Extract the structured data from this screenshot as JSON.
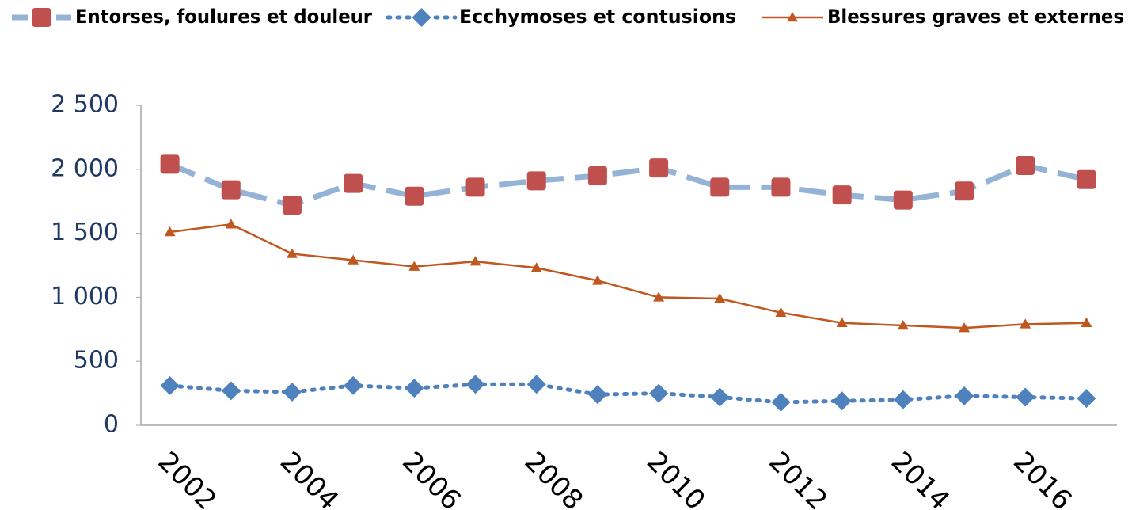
{
  "chart_data": {
    "type": "line",
    "categories": [
      "2002",
      null,
      "2004",
      null,
      "2006",
      null,
      "2008",
      null,
      "2010",
      null,
      "2012",
      null,
      "2014",
      null,
      "2016",
      null
    ],
    "series": [
      {
        "name": "Entorses, foulures et douleur",
        "color": "#95b3d7",
        "marker_color": "#c0504d",
        "line_style": "dashed",
        "marker": "square",
        "values": [
          2040,
          1840,
          1720,
          1890,
          1790,
          1860,
          1910,
          1950,
          2010,
          1860,
          1860,
          1800,
          1760,
          1830,
          2030,
          1920
        ]
      },
      {
        "name": "Ecchymoses et contusions",
        "color": "#4f81bd",
        "marker_color": "#4f81bd",
        "line_style": "dotted",
        "marker": "diamond",
        "values": [
          310,
          270,
          260,
          310,
          290,
          320,
          320,
          240,
          250,
          220,
          180,
          190,
          200,
          230,
          220,
          210
        ]
      },
      {
        "name": "Blessures graves et externes",
        "color": "#c0571f",
        "marker_color": "#c0571f",
        "line_style": "solid",
        "marker": "triangle",
        "values": [
          1510,
          1570,
          1340,
          1290,
          1240,
          1280,
          1230,
          1130,
          1000,
          990,
          880,
          800,
          780,
          760,
          790,
          800
        ]
      }
    ],
    "ylim": [
      0,
      2500
    ],
    "yticks": [
      0,
      500,
      {
        "value": 1000,
        "label": "1 000"
      },
      {
        "value": 1500,
        "label": "1 500"
      },
      {
        "value": 2000,
        "label": "2 000"
      },
      {
        "value": 2500,
        "label": "2 500"
      }
    ],
    "grid": false,
    "legend": "top"
  }
}
